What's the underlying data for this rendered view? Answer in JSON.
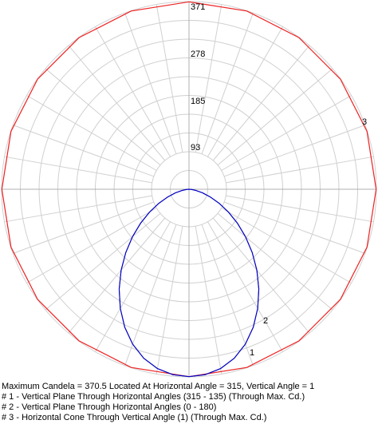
{
  "chart_data": {
    "type": "polar",
    "rlim": [
      0,
      371
    ],
    "radial_ticks": [
      "93",
      "185",
      "278",
      "371"
    ],
    "radial_tick_values": [
      93,
      185,
      278,
      371
    ],
    "angle_step_deg": 10,
    "series": [
      {
        "name": "1",
        "color": "#0000cc",
        "angles_deg": [
          0,
          5,
          10,
          15,
          20,
          25,
          30,
          35,
          40,
          45,
          50,
          55,
          60,
          65,
          70,
          75,
          80,
          85,
          90
        ],
        "candela": [
          370.5,
          368,
          360,
          346,
          326,
          301,
          272,
          241,
          209,
          177,
          146,
          117,
          90,
          66,
          45,
          28,
          14,
          5,
          0
        ]
      },
      {
        "name": "2",
        "color": "#333399",
        "angles_deg": [
          0,
          5,
          10,
          15,
          20,
          25,
          30,
          35,
          40,
          45,
          50,
          55,
          60,
          65,
          70,
          75,
          80,
          85,
          90
        ],
        "candela": [
          370.5,
          368,
          360,
          346,
          326,
          301,
          272,
          241,
          209,
          177,
          146,
          117,
          90,
          66,
          45,
          28,
          14,
          5,
          0
        ]
      },
      {
        "name": "3",
        "color": "#ee2222",
        "candela_uniform": 370.5,
        "sides": 20
      }
    ]
  },
  "legend": {
    "line0": "Maximum Candela = 370.5   Located At Horizontal Angle = 315, Vertical Angle = 1",
    "line1": "# 1 - Vertical Plane Through Horizontal Angles (315 - 135) (Through Max. Cd.)",
    "line2": "# 2 - Vertical Plane Through Horizontal Angles (0 - 180)",
    "line3": "# 3 - Horizontal Cone Through Vertical Angle (1) (Through Max. Cd.)"
  },
  "labels": {
    "series1": "1",
    "series2": "2",
    "series3": "3"
  }
}
